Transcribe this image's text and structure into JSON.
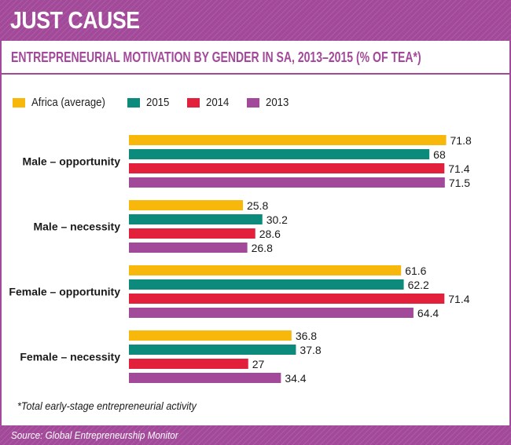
{
  "header": {
    "title": "JUST CAUSE"
  },
  "chart_data": {
    "type": "bar",
    "orientation": "horizontal",
    "title": "ENTREPRENEURIAL MOTIVATION BY GENDER IN SA, 2013–2015 (% OF TEA*)",
    "categories": [
      "Male – opportunity",
      "Male – necessity",
      "Female – opportunity",
      "Female – necessity"
    ],
    "series": [
      {
        "name": "Africa (average)",
        "color": "#f7b70b",
        "values": [
          71.8,
          25.8,
          61.6,
          36.8
        ]
      },
      {
        "name": "2015",
        "color": "#0c8b7c",
        "values": [
          68,
          30.2,
          62.2,
          37.8
        ]
      },
      {
        "name": "2014",
        "color": "#e2203c",
        "values": [
          71.4,
          28.6,
          71.4,
          27
        ]
      },
      {
        "name": "2013",
        "color": "#a3499a",
        "values": [
          71.5,
          26.8,
          64.4,
          34.4
        ]
      }
    ],
    "legend_position": "top-left",
    "grid": false
  },
  "footnote": "*Total early-stage entrepreneurial activity",
  "source": "Source: Global Entrepreneurship Monitor"
}
